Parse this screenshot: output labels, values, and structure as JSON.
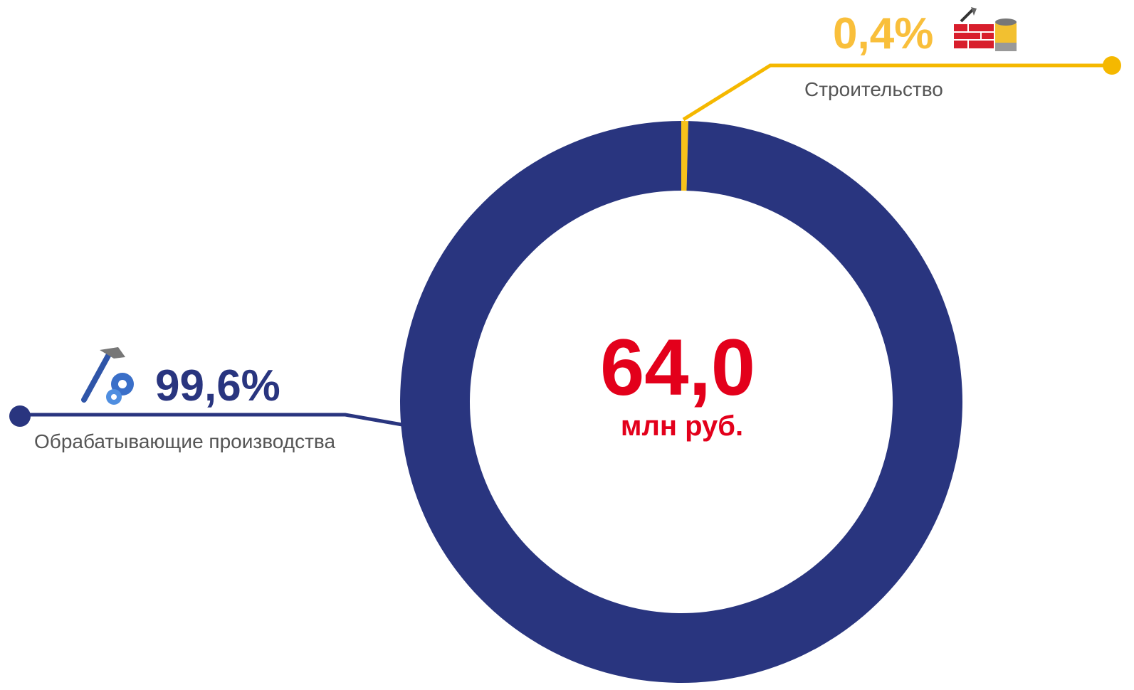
{
  "chart_data": {
    "type": "pie",
    "donut": true,
    "categories": [
      "Строительство",
      "Обрабатывающие производства"
    ],
    "values": [
      0.4,
      99.6
    ],
    "value_labels": [
      "0,4%",
      "99,6%"
    ],
    "colors": [
      "#f7c21a",
      "#29357f"
    ],
    "total": 64.0,
    "total_label": "64,0",
    "total_unit": "млн руб."
  }
}
